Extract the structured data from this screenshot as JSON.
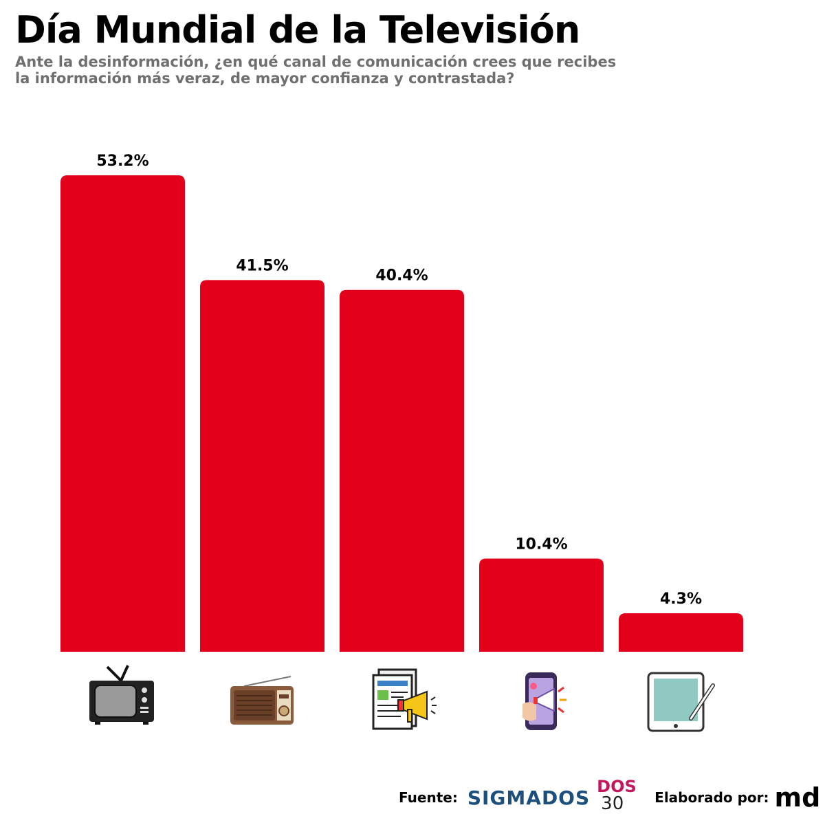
{
  "header": {
    "title": "Día Mundial de la Televisión",
    "subtitle_line1": "Ante la desinformación, ¿en qué canal de comunicación crees que recibes",
    "subtitle_line2": "la información más veraz, de mayor confianza y contrastada?"
  },
  "chart_data": {
    "type": "bar",
    "title": "Día Mundial de la Televisión",
    "subtitle": "Ante la desinformación, ¿en qué canal de comunicación crees que recibes la información más veraz, de mayor confianza y contrastada?",
    "xlabel": "",
    "ylabel": "",
    "ylim": [
      0,
      53.2
    ],
    "grid": false,
    "legend": "none",
    "bar_color": "#E2001A",
    "categories": [
      "tv-icon",
      "radio-icon",
      "newspaper-icon",
      "social-media-phone-icon",
      "tablet-icon"
    ],
    "values": [
      53.2,
      41.5,
      40.4,
      10.4,
      4.3
    ],
    "value_labels": [
      "53.2%",
      "41.5%",
      "40.4%",
      "10.4%",
      "4.3%"
    ]
  },
  "footer": {
    "source_label": "Fuente:",
    "source_name": "SIGMADOS",
    "dos_label": "DOS",
    "thirty_label": "30",
    "made_by_label": "Elaborado por:",
    "md_logo": "md"
  },
  "colors": {
    "bar": "#E2001A",
    "subtitle": "#6f6f6f",
    "sigmados": "#1d4f7c",
    "dos": "#c4165a"
  }
}
